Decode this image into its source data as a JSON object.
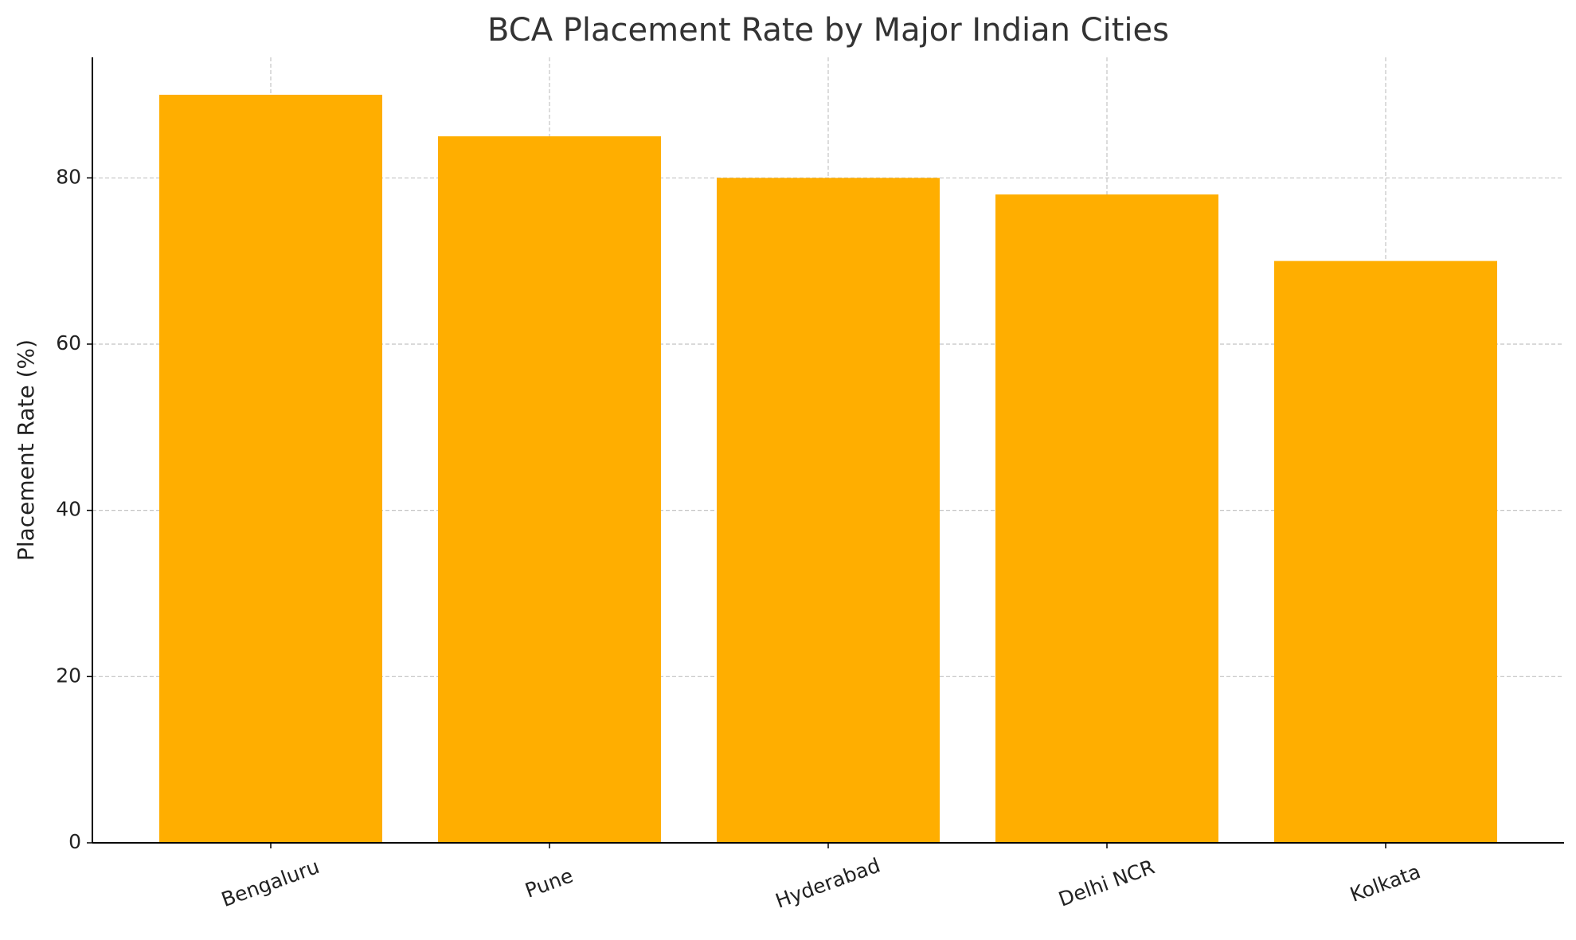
{
  "chart_data": {
    "type": "bar",
    "title": "BCA Placement Rate by Major Indian Cities",
    "y_label": "Placement Rate (%)",
    "categories": [
      "Bengaluru",
      "Pune",
      "Hyderabad",
      "Delhi NCR",
      "Kolkata"
    ],
    "values": [
      90,
      85,
      80,
      78,
      70
    ],
    "color": "#ffae00",
    "ylim": [
      0,
      94.5
    ],
    "yticks": [
      0,
      20,
      40,
      60,
      80
    ],
    "grid": true
  }
}
